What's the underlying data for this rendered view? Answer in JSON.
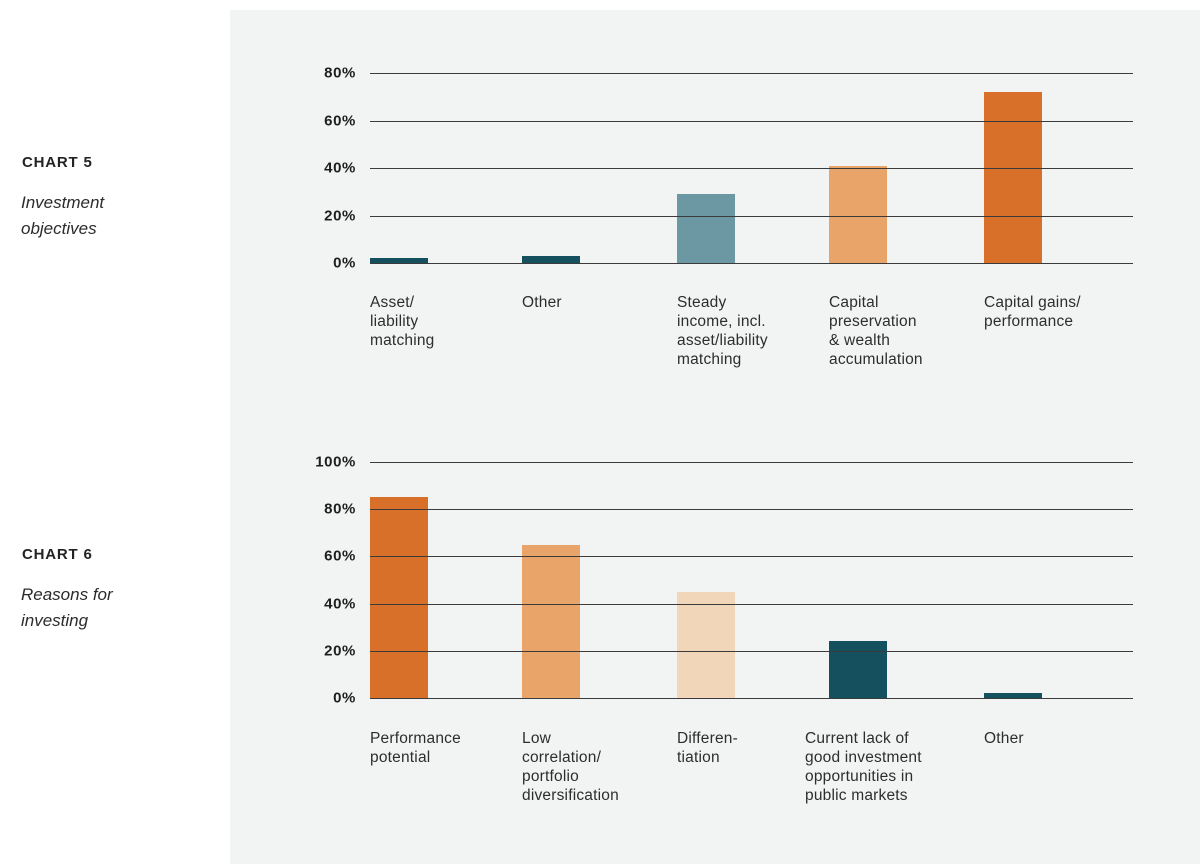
{
  "colors": {
    "page_background": "#ffffff",
    "panel_background": "#f2f4f3",
    "gridline": "#3b3b3b",
    "text": "#2d2d2d",
    "dark_teal": "#15505f",
    "steel_blue": "#6b98a3",
    "light_orange": "#e8a469",
    "dark_orange": "#d8702a",
    "pale_peach": "#f1d6ba"
  },
  "chart_data": [
    {
      "type": "bar",
      "title": "CHART 5",
      "subtitle": "Investment\nobjectives",
      "categories": [
        "Asset/\nliability\nmatching",
        "Other",
        "Steady\nincome, incl.\nasset/liability\nmatching",
        "Capital\npreservation\n& wealth\naccumulation",
        "Capital gains/\nperformance"
      ],
      "values": [
        2,
        3,
        29,
        41,
        72
      ],
      "bar_colors": [
        "#15505f",
        "#15505f",
        "#6b98a3",
        "#e8a469",
        "#d8702a"
      ],
      "xlabel": "",
      "ylabel": "",
      "ylim": [
        0,
        80
      ],
      "yticks": [
        0,
        20,
        40,
        60,
        80
      ],
      "ytick_suffix": "%",
      "grid": "horizontal",
      "legend": false
    },
    {
      "type": "bar",
      "title": "CHART 6",
      "subtitle": "Reasons for\ninvesting",
      "categories": [
        "Performance\npotential",
        "Low\ncorrelation/\nportfolio\ndiversification",
        "Differen-\ntiation",
        "Current lack of\ngood investment\nopportunities in\npublic markets",
        "Other"
      ],
      "values": [
        85,
        65,
        45,
        24,
        2
      ],
      "bar_colors": [
        "#d8702a",
        "#e8a469",
        "#f1d6ba",
        "#15505f",
        "#15505f"
      ],
      "xlabel": "",
      "ylabel": "",
      "ylim": [
        0,
        100
      ],
      "yticks": [
        0,
        20,
        40,
        60,
        80,
        100
      ],
      "ytick_suffix": "%",
      "grid": "horizontal",
      "legend": false
    }
  ]
}
